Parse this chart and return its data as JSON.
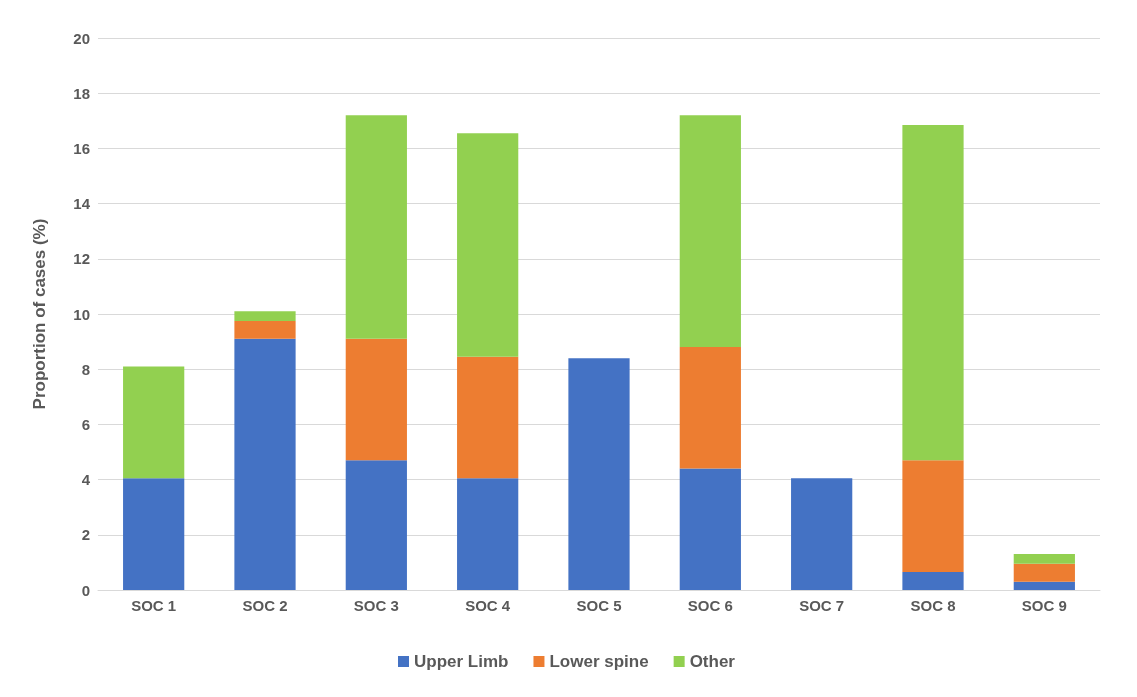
{
  "chart_data": {
    "type": "bar",
    "ylabel": "Proportion of cases (%)",
    "categories": [
      "SOC 1",
      "SOC 2",
      "SOC 3",
      "SOC 4",
      "SOC 5",
      "SOC 6",
      "SOC 7",
      "SOC 8",
      "SOC 9"
    ],
    "series": [
      {
        "name": "Upper Limb",
        "color": "#4472c4",
        "values": [
          4.05,
          9.1,
          4.7,
          4.05,
          8.4,
          4.4,
          4.05,
          0.65,
          0.3
        ]
      },
      {
        "name": "Lower spine",
        "color": "#ed7d31",
        "values": [
          0,
          0.65,
          4.4,
          4.4,
          0,
          4.4,
          0,
          4.05,
          0.65
        ]
      },
      {
        "name": "Other",
        "color": "#92d050",
        "values": [
          4.05,
          0.35,
          8.1,
          8.1,
          0,
          8.4,
          0,
          12.15,
          0.35
        ]
      }
    ],
    "stacked": true,
    "ylim": [
      0,
      20
    ],
    "yticks": [
      0,
      2,
      4,
      6,
      8,
      10,
      12,
      14,
      16,
      18,
      20
    ],
    "grid": "y",
    "legend": "bottom"
  }
}
